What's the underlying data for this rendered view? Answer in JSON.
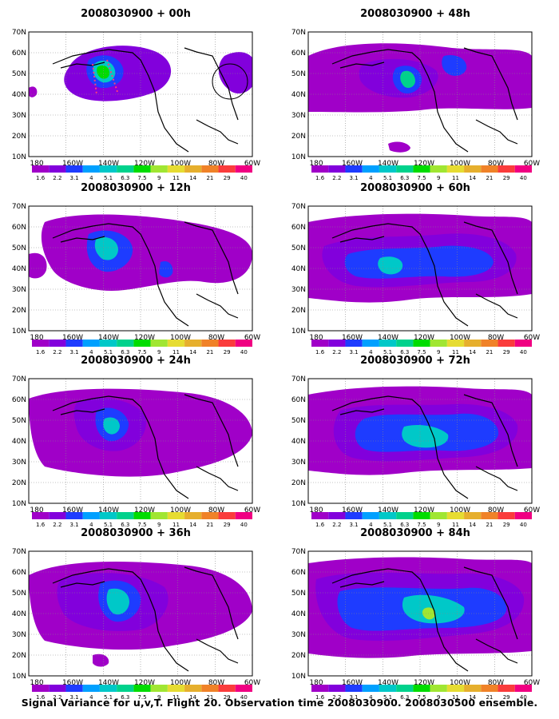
{
  "colorbar": {
    "levels": [
      "1.6",
      "2.2",
      "3.1",
      "4",
      "5.1",
      "6.3",
      "7.5",
      "9",
      "11",
      "14",
      "21",
      "29",
      "40"
    ],
    "colors": [
      "#a000c8",
      "#8200dc",
      "#1e3cff",
      "#00a0ff",
      "#00c8c8",
      "#00d28c",
      "#00dc00",
      "#a0e632",
      "#e6dc32",
      "#e6af2d",
      "#f08228",
      "#fa3c3c",
      "#f00082"
    ]
  },
  "map": {
    "lat_labels": [
      "70N",
      "60N",
      "50N",
      "40N",
      "30N",
      "20N",
      "10N"
    ],
    "lon_labels": [
      "180",
      "160W",
      "140W",
      "120W",
      "100W",
      "80W",
      "60W"
    ],
    "land_color": "#000000"
  },
  "panels": [
    {
      "title": "2008030900 + 00h"
    },
    {
      "title": "2008030900 + 48h"
    },
    {
      "title": "2008030900 + 12h"
    },
    {
      "title": "2008030900 + 60h"
    },
    {
      "title": "2008030900 + 24h"
    },
    {
      "title": "2008030900 + 72h"
    },
    {
      "title": "2008030900 + 36h"
    },
    {
      "title": "2008030900 + 84h"
    }
  ],
  "footer": "Signal Variance for u,v,T. Flight 20. Observation time 2008030900. 2008030500 ensemble."
}
